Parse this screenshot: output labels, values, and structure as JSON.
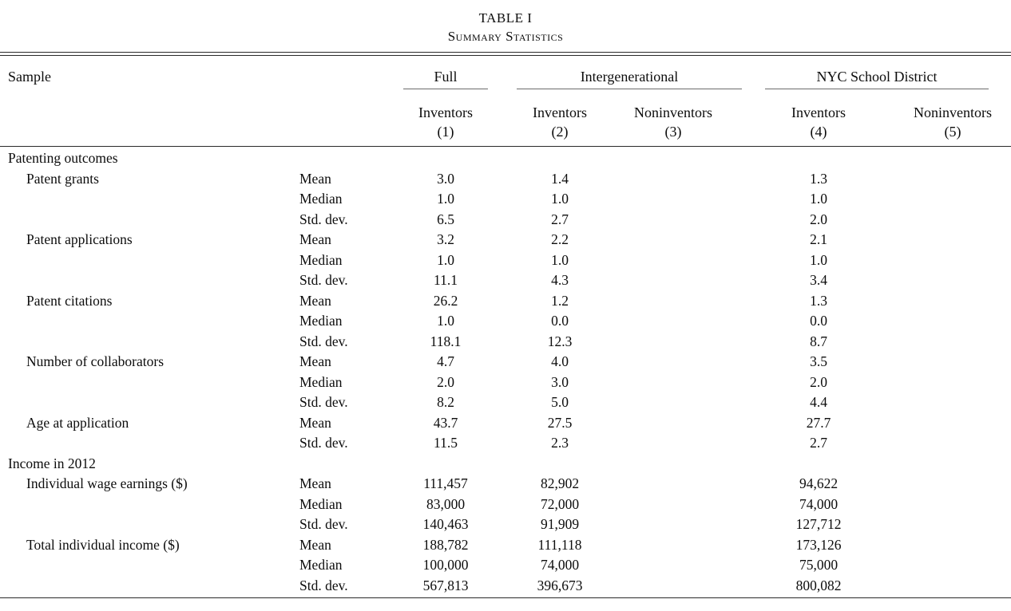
{
  "table": {
    "title": "TABLE I",
    "subtitle": "Summary Statistics",
    "sample_label": "Sample",
    "groups": [
      {
        "label": "Full"
      },
      {
        "label": "Intergenerational"
      },
      {
        "label": "NYC School District"
      }
    ],
    "columns": [
      {
        "name": "Inventors",
        "number": "(1)"
      },
      {
        "name": "Inventors",
        "number": "(2)"
      },
      {
        "name": "Noninventors",
        "number": "(3)"
      },
      {
        "name": "Inventors",
        "number": "(4)"
      },
      {
        "name": "Noninventors",
        "number": "(5)"
      }
    ],
    "rows": [
      {
        "type": "section",
        "label": "Patenting outcomes"
      },
      {
        "type": "data",
        "label": "Patent grants",
        "stat": "Mean",
        "c1": "3.0",
        "c2": "1.4",
        "c3": "",
        "c4": "1.3",
        "c5": ""
      },
      {
        "type": "data",
        "label": "",
        "stat": "Median",
        "c1": "1.0",
        "c2": "1.0",
        "c3": "",
        "c4": "1.0",
        "c5": ""
      },
      {
        "type": "data",
        "label": "",
        "stat": "Std. dev.",
        "c1": "6.5",
        "c2": "2.7",
        "c3": "",
        "c4": "2.0",
        "c5": ""
      },
      {
        "type": "data",
        "label": "Patent applications",
        "stat": "Mean",
        "c1": "3.2",
        "c2": "2.2",
        "c3": "",
        "c4": "2.1",
        "c5": ""
      },
      {
        "type": "data",
        "label": "",
        "stat": "Median",
        "c1": "1.0",
        "c2": "1.0",
        "c3": "",
        "c4": "1.0",
        "c5": ""
      },
      {
        "type": "data",
        "label": "",
        "stat": "Std. dev.",
        "c1": "11.1",
        "c2": "4.3",
        "c3": "",
        "c4": "3.4",
        "c5": ""
      },
      {
        "type": "data",
        "label": "Patent citations",
        "stat": "Mean",
        "c1": "26.2",
        "c2": "1.2",
        "c3": "",
        "c4": "1.3",
        "c5": ""
      },
      {
        "type": "data",
        "label": "",
        "stat": "Median",
        "c1": "1.0",
        "c2": "0.0",
        "c3": "",
        "c4": "0.0",
        "c5": ""
      },
      {
        "type": "data",
        "label": "",
        "stat": "Std. dev.",
        "c1": "118.1",
        "c2": "12.3",
        "c3": "",
        "c4": "8.7",
        "c5": ""
      },
      {
        "type": "data",
        "label": "Number of collaborators",
        "stat": "Mean",
        "c1": "4.7",
        "c2": "4.0",
        "c3": "",
        "c4": "3.5",
        "c5": ""
      },
      {
        "type": "data",
        "label": "",
        "stat": "Median",
        "c1": "2.0",
        "c2": "3.0",
        "c3": "",
        "c4": "2.0",
        "c5": ""
      },
      {
        "type": "data",
        "label": "",
        "stat": "Std. dev.",
        "c1": "8.2",
        "c2": "5.0",
        "c3": "",
        "c4": "4.4",
        "c5": ""
      },
      {
        "type": "data",
        "label": "Age at application",
        "stat": "Mean",
        "c1": "43.7",
        "c2": "27.5",
        "c3": "",
        "c4": "27.7",
        "c5": ""
      },
      {
        "type": "data",
        "label": "",
        "stat": "Std. dev.",
        "c1": "11.5",
        "c2": "2.3",
        "c3": "",
        "c4": "2.7",
        "c5": ""
      },
      {
        "type": "section",
        "label": "Income in 2012"
      },
      {
        "type": "data",
        "label": "Individual wage earnings ($)",
        "stat": "Mean",
        "c1": "111,457",
        "c2": "82,902",
        "c3": "",
        "c4": "94,622",
        "c5": ""
      },
      {
        "type": "data",
        "label": "",
        "stat": "Median",
        "c1": "83,000",
        "c2": "72,000",
        "c3": "",
        "c4": "74,000",
        "c5": ""
      },
      {
        "type": "data",
        "label": "",
        "stat": "Std. dev.",
        "c1": "140,463",
        "c2": "91,909",
        "c3": "",
        "c4": "127,712",
        "c5": ""
      },
      {
        "type": "data",
        "label": "Total individual income ($)",
        "stat": "Mean",
        "c1": "188,782",
        "c2": "111,118",
        "c3": "",
        "c4": "173,126",
        "c5": ""
      },
      {
        "type": "data",
        "label": "",
        "stat": "Median",
        "c1": "100,000",
        "c2": "74,000",
        "c3": "",
        "c4": "75,000",
        "c5": ""
      },
      {
        "type": "data",
        "label": "",
        "stat": "Std. dev.",
        "c1": "567,813",
        "c2": "396,673",
        "c3": "",
        "c4": "800,082",
        "c5": ""
      }
    ]
  }
}
